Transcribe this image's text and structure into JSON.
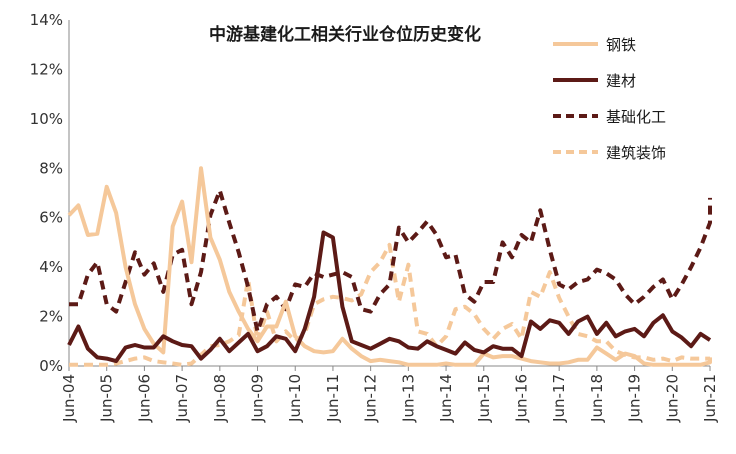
{
  "chart_data": {
    "type": "line",
    "title": "中游基建化工相关行业仓位历史变化",
    "xlabel": "",
    "ylabel": "",
    "ylim": [
      0,
      14
    ],
    "yticks": [
      "0%",
      "2%",
      "4%",
      "6%",
      "8%",
      "10%",
      "12%",
      "14%"
    ],
    "x_labels": [
      "Jun-04",
      "Jun-05",
      "Jun-06",
      "Jun-07",
      "Jun-08",
      "Jun-09",
      "Jun-10",
      "Jun-11",
      "Jun-12",
      "Jun-13",
      "Jun-14",
      "Jun-15",
      "Jun-16",
      "Jun-17",
      "Jun-18",
      "Jun-19",
      "Jun-20",
      "Jun-21"
    ],
    "x_start": 2004.5,
    "x_step": 0.25,
    "grid": false,
    "legend_position": "top-right",
    "series": [
      {
        "name": "钢铁",
        "color": "#f5c89a",
        "dash": "solid",
        "values": [
          6.1,
          6.5,
          5.3,
          5.35,
          7.25,
          6.2,
          4.0,
          2.5,
          1.5,
          0.9,
          0.55,
          5.65,
          6.65,
          4.2,
          8.0,
          5.2,
          4.3,
          3.0,
          2.2,
          1.5,
          1.0,
          1.6,
          1.6,
          2.6,
          1.2,
          0.8,
          0.6,
          0.55,
          0.6,
          1.1,
          0.7,
          0.4,
          0.2,
          0.25,
          0.2,
          0.15,
          0.05,
          0.05,
          0.05,
          0.05,
          0.1,
          0.05,
          0.05,
          0.05,
          0.5,
          0.35,
          0.4,
          0.4,
          0.3,
          0.2,
          0.15,
          0.1,
          0.1,
          0.15,
          0.25,
          0.25,
          0.75,
          0.5,
          0.25,
          0.5,
          0.4,
          0.1,
          0.05,
          0.05,
          0.05,
          0.05,
          0.05,
          0.05,
          0.15,
          0.2,
          0.3,
          0.35
        ]
      },
      {
        "name": "建材",
        "color": "#5c1a16",
        "dash": "solid",
        "values": [
          0.85,
          1.6,
          0.7,
          0.35,
          0.3,
          0.2,
          0.75,
          0.85,
          0.75,
          0.75,
          1.2,
          1.0,
          0.85,
          0.8,
          0.3,
          0.65,
          1.1,
          0.6,
          0.95,
          1.3,
          0.6,
          0.8,
          1.2,
          1.1,
          0.6,
          1.5,
          2.8,
          5.4,
          5.2,
          2.4,
          1.0,
          0.85,
          0.7,
          0.9,
          1.1,
          1.0,
          0.75,
          0.7,
          1.0,
          0.8,
          0.65,
          0.5,
          0.95,
          0.65,
          0.55,
          0.8,
          0.7,
          0.7,
          0.4,
          1.8,
          1.5,
          1.85,
          1.75,
          1.3,
          1.8,
          2.0,
          1.3,
          1.75,
          1.2,
          1.4,
          1.5,
          1.2,
          1.75,
          2.05,
          1.4,
          1.15,
          0.8,
          1.3,
          1.05
        ]
      },
      {
        "name": "基础化工",
        "color": "#5c1a16",
        "dash": "dashed",
        "values": [
          2.5,
          2.5,
          3.7,
          4.2,
          2.5,
          2.2,
          3.4,
          4.6,
          3.7,
          4.15,
          3.0,
          4.5,
          4.7,
          2.5,
          3.8,
          6.1,
          7.1,
          5.8,
          4.6,
          3.2,
          1.4,
          2.5,
          2.8,
          2.3,
          3.3,
          3.2,
          3.75,
          3.6,
          3.7,
          3.8,
          3.6,
          2.3,
          2.2,
          2.9,
          3.3,
          5.6,
          5.0,
          5.4,
          5.85,
          5.3,
          4.4,
          4.5,
          2.9,
          2.6,
          3.4,
          3.4,
          5.0,
          4.4,
          5.3,
          5.0,
          6.3,
          4.7,
          3.3,
          3.1,
          3.4,
          3.5,
          3.9,
          3.75,
          3.5,
          2.9,
          2.5,
          2.8,
          3.2,
          3.5,
          2.7,
          3.3,
          4.0,
          4.8,
          5.8,
          6.8
        ]
      },
      {
        "name": "建筑装饰",
        "color": "#f5c89a",
        "dash": "dashed",
        "values": [
          0.05,
          0.05,
          0.05,
          0.05,
          0.05,
          0.1,
          0.2,
          0.3,
          0.35,
          0.2,
          0.15,
          0.1,
          0.05,
          0.1,
          0.45,
          0.8,
          0.85,
          1.0,
          1.25,
          3.5,
          1.0,
          2.2,
          1.0,
          1.4,
          1.0,
          1.3,
          2.5,
          2.7,
          2.8,
          2.75,
          2.65,
          2.9,
          3.8,
          4.2,
          4.9,
          2.6,
          4.1,
          1.4,
          1.3,
          0.8,
          1.2,
          2.3,
          2.4,
          2.1,
          1.5,
          1.1,
          1.5,
          1.7,
          1.1,
          3.0,
          2.8,
          3.8,
          2.75,
          2.0,
          1.3,
          1.2,
          1.0,
          1.0,
          0.6,
          0.45,
          0.35,
          0.35,
          0.25,
          0.3,
          0.2,
          0.35,
          0.3,
          0.3,
          0.3
        ]
      }
    ]
  }
}
